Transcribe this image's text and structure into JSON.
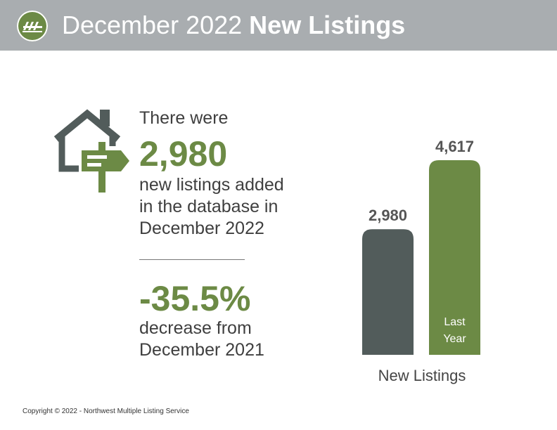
{
  "header": {
    "title_light": "December 2022",
    "title_bold": "New Listings"
  },
  "stats": {
    "intro": "There were",
    "listings_value": "2,980",
    "desc_line1": "new listings added",
    "desc_line2": "in the database in",
    "desc_line3": "December 2022",
    "change_value": "-35.5%",
    "change_line1": "decrease from",
    "change_line2": "December 2021"
  },
  "chart_data": {
    "type": "bar",
    "categories": [
      "",
      "Last Year"
    ],
    "values": [
      2980,
      4617
    ],
    "value_labels": [
      "2,980",
      "4,617"
    ],
    "xlabel": "New Listings",
    "colors": [
      "#525c5b",
      "#6c8a45"
    ]
  },
  "footer": {
    "copyright": "Copyright © 2022 - Northwest Multiple Listing Service"
  },
  "icons": [
    "logo-icon",
    "house-with-sign-icon"
  ]
}
